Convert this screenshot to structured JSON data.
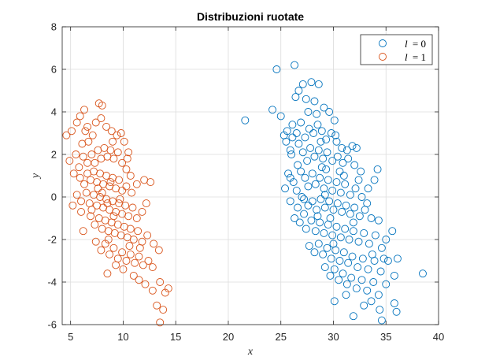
{
  "chart_data": {
    "type": "scatter",
    "title": "Distribuzioni ruotate",
    "xlabel": "x",
    "ylabel": "y",
    "xlim": [
      4.2,
      40
    ],
    "ylim": [
      -6,
      8
    ],
    "xticks": [
      5,
      10,
      15,
      20,
      25,
      30,
      35,
      40
    ],
    "yticks": [
      -6,
      -4,
      -2,
      0,
      2,
      4,
      6,
      8
    ],
    "grid": true,
    "legend_position": "top-right",
    "series": [
      {
        "name": "l = 0",
        "legend_var": "l",
        "legend_val": "= 0",
        "color": "#0072BD",
        "marker": "open-circle",
        "points": [
          [
            21.6,
            3.6
          ],
          [
            24.2,
            4.1
          ],
          [
            24.6,
            6.0
          ],
          [
            26.3,
            6.2
          ],
          [
            25.0,
            3.8
          ],
          [
            25.3,
            2.9
          ],
          [
            25.5,
            2.6
          ],
          [
            25.6,
            3.1
          ],
          [
            25.9,
            2.2
          ],
          [
            26.1,
            2.8
          ],
          [
            26.4,
            4.7
          ],
          [
            26.7,
            5.0
          ],
          [
            27.1,
            5.3
          ],
          [
            27.4,
            4.6
          ],
          [
            27.9,
            5.4
          ],
          [
            28.6,
            5.3
          ],
          [
            28.2,
            4.5
          ],
          [
            27.6,
            4.0
          ],
          [
            28.4,
            3.9
          ],
          [
            29.1,
            4.2
          ],
          [
            29.6,
            4.0
          ],
          [
            30.1,
            3.6
          ],
          [
            26.1,
            3.4
          ],
          [
            26.5,
            3.0
          ],
          [
            26.9,
            3.5
          ],
          [
            27.3,
            2.8
          ],
          [
            27.7,
            3.2
          ],
          [
            28.1,
            3.0
          ],
          [
            28.5,
            3.4
          ],
          [
            28.9,
            3.1
          ],
          [
            29.3,
            2.7
          ],
          [
            29.8,
            3.0
          ],
          [
            30.3,
            2.6
          ],
          [
            30.8,
            2.3
          ],
          [
            31.3,
            2.2
          ],
          [
            31.8,
            2.4
          ],
          [
            32.2,
            2.3
          ],
          [
            26.0,
            2.0
          ],
          [
            26.6,
            1.5
          ],
          [
            27.1,
            2.1
          ],
          [
            27.5,
            1.7
          ],
          [
            27.8,
            2.3
          ],
          [
            28.2,
            1.9
          ],
          [
            28.6,
            2.2
          ],
          [
            29.0,
            1.8
          ],
          [
            29.4,
            2.1
          ],
          [
            29.9,
            1.7
          ],
          [
            30.4,
            1.9
          ],
          [
            30.9,
            1.6
          ],
          [
            31.4,
            1.8
          ],
          [
            32.0,
            1.5
          ],
          [
            32.6,
            1.2
          ],
          [
            25.4,
            0.4
          ],
          [
            25.7,
            1.1
          ],
          [
            26.2,
            0.7
          ],
          [
            26.5,
            0.3
          ],
          [
            26.9,
            1.2
          ],
          [
            27.3,
            0.9
          ],
          [
            27.6,
            0.5
          ],
          [
            28.0,
            1.1
          ],
          [
            28.3,
            0.6
          ],
          [
            28.7,
            0.9
          ],
          [
            29.1,
            0.4
          ],
          [
            29.5,
            0.8
          ],
          [
            29.9,
            0.3
          ],
          [
            30.3,
            0.7
          ],
          [
            30.7,
            0.2
          ],
          [
            31.1,
            0.6
          ],
          [
            31.6,
            0.1
          ],
          [
            32.1,
            0.4
          ],
          [
            32.7,
            0.0
          ],
          [
            33.3,
            0.4
          ],
          [
            33.9,
            0.8
          ],
          [
            34.2,
            1.3
          ],
          [
            25.9,
            -0.2
          ],
          [
            26.6,
            -0.5
          ],
          [
            27.2,
            -0.1
          ],
          [
            27.6,
            -0.4
          ],
          [
            28.0,
            -0.2
          ],
          [
            28.4,
            -0.6
          ],
          [
            28.8,
            -0.1
          ],
          [
            29.2,
            -0.5
          ],
          [
            29.6,
            -0.2
          ],
          [
            30.0,
            -0.6
          ],
          [
            30.4,
            -0.3
          ],
          [
            30.8,
            -0.7
          ],
          [
            31.2,
            -0.4
          ],
          [
            31.6,
            -0.8
          ],
          [
            32.0,
            -0.5
          ],
          [
            32.5,
            -0.9
          ],
          [
            33.0,
            -0.6
          ],
          [
            33.6,
            -1.0
          ],
          [
            34.3,
            -1.1
          ],
          [
            26.8,
            -1.2
          ],
          [
            27.4,
            -1.5
          ],
          [
            27.9,
            -1.1
          ],
          [
            28.3,
            -1.6
          ],
          [
            28.7,
            -1.2
          ],
          [
            29.1,
            -1.7
          ],
          [
            29.5,
            -1.3
          ],
          [
            29.9,
            -1.8
          ],
          [
            30.3,
            -1.4
          ],
          [
            30.7,
            -1.9
          ],
          [
            31.1,
            -1.5
          ],
          [
            31.5,
            -2.0
          ],
          [
            31.9,
            -1.6
          ],
          [
            32.4,
            -2.1
          ],
          [
            32.9,
            -1.7
          ],
          [
            33.4,
            -2.2
          ],
          [
            34.0,
            -1.8
          ],
          [
            34.6,
            -2.4
          ],
          [
            35.0,
            -2.0
          ],
          [
            35.6,
            -1.6
          ],
          [
            27.7,
            -2.3
          ],
          [
            28.2,
            -2.6
          ],
          [
            28.6,
            -2.2
          ],
          [
            29.0,
            -2.7
          ],
          [
            29.4,
            -2.4
          ],
          [
            29.8,
            -2.9
          ],
          [
            30.2,
            -2.5
          ],
          [
            30.6,
            -3.0
          ],
          [
            31.0,
            -2.6
          ],
          [
            31.4,
            -3.1
          ],
          [
            31.8,
            -2.8
          ],
          [
            32.3,
            -3.3
          ],
          [
            32.8,
            -2.9
          ],
          [
            33.3,
            -3.4
          ],
          [
            33.9,
            -3.0
          ],
          [
            34.5,
            -3.5
          ],
          [
            35.2,
            -3.0
          ],
          [
            36.1,
            -2.9
          ],
          [
            29.2,
            -3.3
          ],
          [
            29.7,
            -3.7
          ],
          [
            30.1,
            -3.4
          ],
          [
            30.5,
            -3.9
          ],
          [
            30.9,
            -3.6
          ],
          [
            31.3,
            -4.1
          ],
          [
            31.7,
            -3.8
          ],
          [
            32.2,
            -4.3
          ],
          [
            32.7,
            -3.9
          ],
          [
            33.2,
            -4.4
          ],
          [
            33.8,
            -4.0
          ],
          [
            34.3,
            -4.6
          ],
          [
            35.0,
            -4.1
          ],
          [
            35.8,
            -3.7
          ],
          [
            38.5,
            -3.6
          ],
          [
            30.1,
            -4.9
          ],
          [
            31.2,
            -4.6
          ],
          [
            31.9,
            -5.6
          ],
          [
            32.9,
            -5.1
          ],
          [
            33.6,
            -4.9
          ],
          [
            34.4,
            -5.3
          ],
          [
            34.6,
            -5.8
          ],
          [
            36.0,
            -5.4
          ],
          [
            35.8,
            -5.0
          ],
          [
            28.9,
            1.4
          ],
          [
            29.2,
            0.1
          ],
          [
            28.5,
            -0.9
          ],
          [
            30.6,
            1.2
          ],
          [
            27.0,
            0.0
          ],
          [
            31.9,
            -1.2
          ],
          [
            26.3,
            -1.0
          ],
          [
            33.2,
            -0.3
          ],
          [
            29.7,
            -1.0
          ],
          [
            28.8,
            2.6
          ],
          [
            30.2,
            2.9
          ],
          [
            27.2,
            -0.8
          ],
          [
            32.4,
            0.8
          ],
          [
            31.0,
            1.0
          ],
          [
            29.3,
            1.3
          ],
          [
            30.0,
            -2.2
          ],
          [
            33.7,
            -2.7
          ],
          [
            34.8,
            -2.9
          ],
          [
            26.7,
            2.5
          ],
          [
            25.9,
            0.9
          ]
        ]
      },
      {
        "name": "l = 1",
        "legend_var": "l",
        "legend_val": "= 1",
        "color": "#D95319",
        "marker": "open-circle",
        "points": [
          [
            4.6,
            2.9
          ],
          [
            5.1,
            3.1
          ],
          [
            5.6,
            3.5
          ],
          [
            5.9,
            3.8
          ],
          [
            6.3,
            4.1
          ],
          [
            6.6,
            3.3
          ],
          [
            6.1,
            2.5
          ],
          [
            5.5,
            2.0
          ],
          [
            4.9,
            1.7
          ],
          [
            5.3,
            1.1
          ],
          [
            5.8,
            1.4
          ],
          [
            6.2,
            1.9
          ],
          [
            6.7,
            2.6
          ],
          [
            7.1,
            2.9
          ],
          [
            7.4,
            3.5
          ],
          [
            7.7,
            4.4
          ],
          [
            8.0,
            4.3
          ],
          [
            7.9,
            3.7
          ],
          [
            8.4,
            3.3
          ],
          [
            8.9,
            3.1
          ],
          [
            9.4,
            2.9
          ],
          [
            9.8,
            3.0
          ],
          [
            10.1,
            2.6
          ],
          [
            10.5,
            2.1
          ],
          [
            6.6,
            1.6
          ],
          [
            7.0,
            2.0
          ],
          [
            7.3,
            1.6
          ],
          [
            7.6,
            2.2
          ],
          [
            7.9,
            1.8
          ],
          [
            8.2,
            2.3
          ],
          [
            8.5,
            1.9
          ],
          [
            8.8,
            2.2
          ],
          [
            9.1,
            1.8
          ],
          [
            9.5,
            2.1
          ],
          [
            9.9,
            1.6
          ],
          [
            10.3,
            1.3
          ],
          [
            10.7,
            1.0
          ],
          [
            5.9,
            0.9
          ],
          [
            6.3,
            0.6
          ],
          [
            6.6,
            1.1
          ],
          [
            6.9,
            0.8
          ],
          [
            7.2,
            1.2
          ],
          [
            7.5,
            0.7
          ],
          [
            7.8,
            1.1
          ],
          [
            8.1,
            0.6
          ],
          [
            8.4,
            1.0
          ],
          [
            8.7,
            0.5
          ],
          [
            9.0,
            0.9
          ],
          [
            9.3,
            0.4
          ],
          [
            9.6,
            0.8
          ],
          [
            9.9,
            0.3
          ],
          [
            10.3,
            0.5
          ],
          [
            10.8,
            0.2
          ],
          [
            11.3,
            0.6
          ],
          [
            12.0,
            0.8
          ],
          [
            12.6,
            0.7
          ],
          [
            5.6,
            0.1
          ],
          [
            6.0,
            -0.2
          ],
          [
            6.5,
            0.2
          ],
          [
            6.8,
            -0.3
          ],
          [
            7.2,
            0.1
          ],
          [
            7.5,
            -0.4
          ],
          [
            7.8,
            0.0
          ],
          [
            8.1,
            -0.5
          ],
          [
            8.4,
            -0.1
          ],
          [
            8.7,
            -0.6
          ],
          [
            9.0,
            -0.2
          ],
          [
            9.3,
            -0.7
          ],
          [
            9.6,
            -0.3
          ],
          [
            9.9,
            -0.8
          ],
          [
            10.2,
            -0.4
          ],
          [
            10.5,
            -0.9
          ],
          [
            10.9,
            -0.5
          ],
          [
            11.3,
            -1.0
          ],
          [
            11.8,
            -0.7
          ],
          [
            6.0,
            -0.7
          ],
          [
            6.9,
            -0.9
          ],
          [
            7.3,
            -1.3
          ],
          [
            7.7,
            -1.0
          ],
          [
            8.0,
            -1.5
          ],
          [
            8.3,
            -1.1
          ],
          [
            8.6,
            -1.6
          ],
          [
            8.9,
            -1.2
          ],
          [
            9.2,
            -1.7
          ],
          [
            9.5,
            -1.3
          ],
          [
            9.8,
            -1.8
          ],
          [
            10.1,
            -1.4
          ],
          [
            10.4,
            -1.9
          ],
          [
            10.7,
            -1.5
          ],
          [
            11.0,
            -2.0
          ],
          [
            11.4,
            -1.6
          ],
          [
            11.8,
            -2.1
          ],
          [
            12.3,
            -1.8
          ],
          [
            12.9,
            -2.2
          ],
          [
            13.4,
            -2.5
          ],
          [
            6.2,
            -1.6
          ],
          [
            7.4,
            -2.1
          ],
          [
            7.9,
            -2.5
          ],
          [
            8.3,
            -2.2
          ],
          [
            8.7,
            -2.7
          ],
          [
            9.1,
            -2.4
          ],
          [
            9.5,
            -2.9
          ],
          [
            9.9,
            -2.6
          ],
          [
            10.3,
            -3.0
          ],
          [
            10.7,
            -2.7
          ],
          [
            11.1,
            -3.1
          ],
          [
            11.5,
            -2.8
          ],
          [
            11.9,
            -3.2
          ],
          [
            12.4,
            -3.0
          ],
          [
            12.8,
            -3.3
          ],
          [
            8.5,
            -3.6
          ],
          [
            9.3,
            -3.2
          ],
          [
            10.0,
            -3.4
          ],
          [
            11.0,
            -3.7
          ],
          [
            11.5,
            -3.9
          ],
          [
            12.1,
            -4.1
          ],
          [
            12.8,
            -4.4
          ],
          [
            13.5,
            -4.0
          ],
          [
            14.0,
            -4.5
          ],
          [
            14.3,
            -4.3
          ],
          [
            13.2,
            -5.1
          ],
          [
            13.8,
            -5.3
          ],
          [
            13.5,
            -5.9
          ],
          [
            7.6,
            0.4
          ],
          [
            8.0,
            0.2
          ],
          [
            8.5,
            -0.3
          ],
          [
            9.1,
            -0.9
          ],
          [
            8.8,
            0.7
          ],
          [
            9.7,
            -0.1
          ],
          [
            7.0,
            -0.6
          ],
          [
            10.4,
            1.8
          ],
          [
            6.4,
            3.1
          ],
          [
            11.6,
            -2.4
          ],
          [
            12.2,
            -0.3
          ],
          [
            5.2,
            -0.4
          ],
          [
            10.6,
            -2.3
          ],
          [
            9.0,
            2.6
          ],
          [
            8.6,
            -2.0
          ]
        ]
      }
    ]
  }
}
